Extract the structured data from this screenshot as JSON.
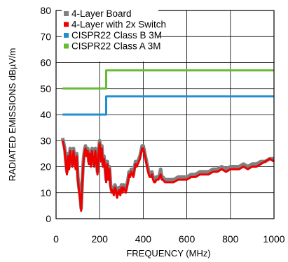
{
  "chart_data": {
    "type": "line",
    "title": "",
    "xlabel": "FREQUENCY (MHz)",
    "ylabel": "RADIATED EMISSIONS dBµV/m",
    "xlim": [
      0,
      1000
    ],
    "ylim": [
      0,
      80
    ],
    "xticks": [
      0,
      200,
      400,
      600,
      800,
      1000
    ],
    "yticks": [
      0,
      10,
      20,
      30,
      40,
      50,
      60,
      70,
      80
    ],
    "grid": true,
    "legend_position": "top-left",
    "series": [
      {
        "name": "4-Layer Board",
        "color": "#808080",
        "points": [
          [
            30,
            31
          ],
          [
            35,
            29
          ],
          [
            40,
            27
          ],
          [
            45,
            22
          ],
          [
            50,
            18
          ],
          [
            55,
            25
          ],
          [
            60,
            20
          ],
          [
            65,
            27
          ],
          [
            70,
            24
          ],
          [
            75,
            21
          ],
          [
            80,
            27
          ],
          [
            85,
            23
          ],
          [
            90,
            20
          ],
          [
            95,
            25
          ],
          [
            100,
            16
          ],
          [
            105,
            12
          ],
          [
            110,
            9
          ],
          [
            115,
            4
          ],
          [
            120,
            14
          ],
          [
            125,
            22
          ],
          [
            130,
            26
          ],
          [
            135,
            28
          ],
          [
            140,
            25
          ],
          [
            145,
            27
          ],
          [
            150,
            22
          ],
          [
            155,
            26
          ],
          [
            160,
            21
          ],
          [
            165,
            27
          ],
          [
            170,
            24
          ],
          [
            175,
            21
          ],
          [
            180,
            27
          ],
          [
            185,
            23
          ],
          [
            190,
            18
          ],
          [
            195,
            26
          ],
          [
            200,
            30
          ],
          [
            205,
            23
          ],
          [
            210,
            28
          ],
          [
            215,
            21
          ],
          [
            220,
            24
          ],
          [
            225,
            20
          ],
          [
            230,
            15
          ],
          [
            235,
            22
          ],
          [
            240,
            16
          ],
          [
            245,
            20
          ],
          [
            250,
            13
          ],
          [
            255,
            11
          ],
          [
            260,
            12
          ],
          [
            265,
            10
          ],
          [
            270,
            13
          ],
          [
            275,
            12
          ],
          [
            280,
            9
          ],
          [
            285,
            11
          ],
          [
            290,
            12
          ],
          [
            295,
            10
          ],
          [
            300,
            13
          ],
          [
            305,
            11
          ],
          [
            310,
            13
          ],
          [
            315,
            12
          ],
          [
            320,
            11
          ],
          [
            325,
            13
          ],
          [
            330,
            15
          ],
          [
            335,
            18
          ],
          [
            340,
            17
          ],
          [
            345,
            19
          ],
          [
            350,
            18
          ],
          [
            355,
            17
          ],
          [
            360,
            20
          ],
          [
            365,
            22
          ],
          [
            370,
            21
          ],
          [
            375,
            22
          ],
          [
            380,
            23
          ],
          [
            385,
            24
          ],
          [
            390,
            26
          ],
          [
            395,
            28
          ],
          [
            400,
            28
          ],
          [
            405,
            26
          ],
          [
            410,
            24
          ],
          [
            415,
            22
          ],
          [
            420,
            20
          ],
          [
            425,
            18
          ],
          [
            430,
            17
          ],
          [
            435,
            17
          ],
          [
            440,
            18
          ],
          [
            445,
            16
          ],
          [
            450,
            15
          ],
          [
            455,
            15
          ],
          [
            460,
            16
          ],
          [
            465,
            16
          ],
          [
            470,
            16
          ],
          [
            475,
            17
          ],
          [
            480,
            19
          ],
          [
            485,
            16
          ],
          [
            490,
            16
          ],
          [
            500,
            15
          ],
          [
            520,
            15
          ],
          [
            540,
            15
          ],
          [
            560,
            16
          ],
          [
            580,
            16
          ],
          [
            600,
            16
          ],
          [
            620,
            17
          ],
          [
            640,
            17
          ],
          [
            660,
            18
          ],
          [
            680,
            18
          ],
          [
            700,
            18
          ],
          [
            720,
            19
          ],
          [
            740,
            19
          ],
          [
            760,
            20
          ],
          [
            780,
            19
          ],
          [
            800,
            20
          ],
          [
            820,
            20
          ],
          [
            840,
            20
          ],
          [
            860,
            21
          ],
          [
            880,
            20
          ],
          [
            900,
            21
          ],
          [
            920,
            21
          ],
          [
            940,
            22
          ],
          [
            960,
            22
          ],
          [
            980,
            23
          ],
          [
            1000,
            23
          ]
        ]
      },
      {
        "name": "4-Layer with 2x Switch",
        "color": "#ee0000",
        "points": [
          [
            30,
            30
          ],
          [
            35,
            28
          ],
          [
            40,
            26
          ],
          [
            45,
            21
          ],
          [
            50,
            17
          ],
          [
            55,
            24
          ],
          [
            60,
            19
          ],
          [
            65,
            26
          ],
          [
            70,
            23
          ],
          [
            75,
            20
          ],
          [
            80,
            26
          ],
          [
            85,
            22
          ],
          [
            90,
            19
          ],
          [
            95,
            24
          ],
          [
            100,
            15
          ],
          [
            105,
            11
          ],
          [
            110,
            8
          ],
          [
            115,
            3
          ],
          [
            120,
            13
          ],
          [
            125,
            21
          ],
          [
            130,
            25
          ],
          [
            135,
            27
          ],
          [
            140,
            24
          ],
          [
            145,
            26
          ],
          [
            150,
            21
          ],
          [
            155,
            25
          ],
          [
            160,
            20
          ],
          [
            165,
            26
          ],
          [
            170,
            23
          ],
          [
            175,
            20
          ],
          [
            180,
            26
          ],
          [
            185,
            22
          ],
          [
            190,
            17
          ],
          [
            195,
            25
          ],
          [
            200,
            29
          ],
          [
            205,
            22
          ],
          [
            210,
            27
          ],
          [
            215,
            20
          ],
          [
            220,
            23
          ],
          [
            225,
            19
          ],
          [
            230,
            14
          ],
          [
            235,
            21
          ],
          [
            240,
            15
          ],
          [
            245,
            19
          ],
          [
            250,
            12
          ],
          [
            255,
            10
          ],
          [
            260,
            11
          ],
          [
            265,
            9
          ],
          [
            270,
            12
          ],
          [
            275,
            11
          ],
          [
            280,
            8
          ],
          [
            285,
            10
          ],
          [
            290,
            11
          ],
          [
            295,
            9
          ],
          [
            300,
            12
          ],
          [
            305,
            10
          ],
          [
            310,
            12
          ],
          [
            315,
            11
          ],
          [
            320,
            10
          ],
          [
            325,
            12
          ],
          [
            330,
            14
          ],
          [
            335,
            17
          ],
          [
            340,
            16
          ],
          [
            345,
            18
          ],
          [
            350,
            17
          ],
          [
            355,
            16
          ],
          [
            360,
            19
          ],
          [
            365,
            21
          ],
          [
            370,
            20
          ],
          [
            375,
            21
          ],
          [
            380,
            22
          ],
          [
            385,
            23
          ],
          [
            390,
            25
          ],
          [
            395,
            27
          ],
          [
            400,
            27
          ],
          [
            405,
            25
          ],
          [
            410,
            23
          ],
          [
            415,
            21
          ],
          [
            420,
            19
          ],
          [
            425,
            17
          ],
          [
            430,
            16
          ],
          [
            435,
            16
          ],
          [
            440,
            17
          ],
          [
            445,
            15
          ],
          [
            450,
            14
          ],
          [
            455,
            14
          ],
          [
            460,
            15
          ],
          [
            465,
            15
          ],
          [
            470,
            15
          ],
          [
            475,
            16
          ],
          [
            480,
            17
          ],
          [
            485,
            15
          ],
          [
            490,
            15
          ],
          [
            500,
            14
          ],
          [
            520,
            14
          ],
          [
            540,
            14
          ],
          [
            560,
            15
          ],
          [
            580,
            15
          ],
          [
            600,
            15
          ],
          [
            620,
            16
          ],
          [
            640,
            16
          ],
          [
            660,
            17
          ],
          [
            680,
            17
          ],
          [
            700,
            17
          ],
          [
            720,
            18
          ],
          [
            740,
            18
          ],
          [
            760,
            19
          ],
          [
            780,
            18
          ],
          [
            800,
            19
          ],
          [
            820,
            19
          ],
          [
            840,
            19
          ],
          [
            860,
            20
          ],
          [
            880,
            19
          ],
          [
            900,
            20
          ],
          [
            920,
            20
          ],
          [
            940,
            21
          ],
          [
            960,
            22
          ],
          [
            980,
            23
          ],
          [
            1000,
            22
          ]
        ]
      },
      {
        "name": "CISPR22 Class B 3M",
        "color": "#1f8fd0",
        "points": [
          [
            30,
            40
          ],
          [
            230,
            40
          ],
          [
            230,
            47
          ],
          [
            1000,
            47
          ]
        ]
      },
      {
        "name": "CISPR22 Class A 3M",
        "color": "#66bb33",
        "points": [
          [
            30,
            50
          ],
          [
            230,
            50
          ],
          [
            230,
            57
          ],
          [
            1000,
            57
          ]
        ]
      }
    ]
  }
}
